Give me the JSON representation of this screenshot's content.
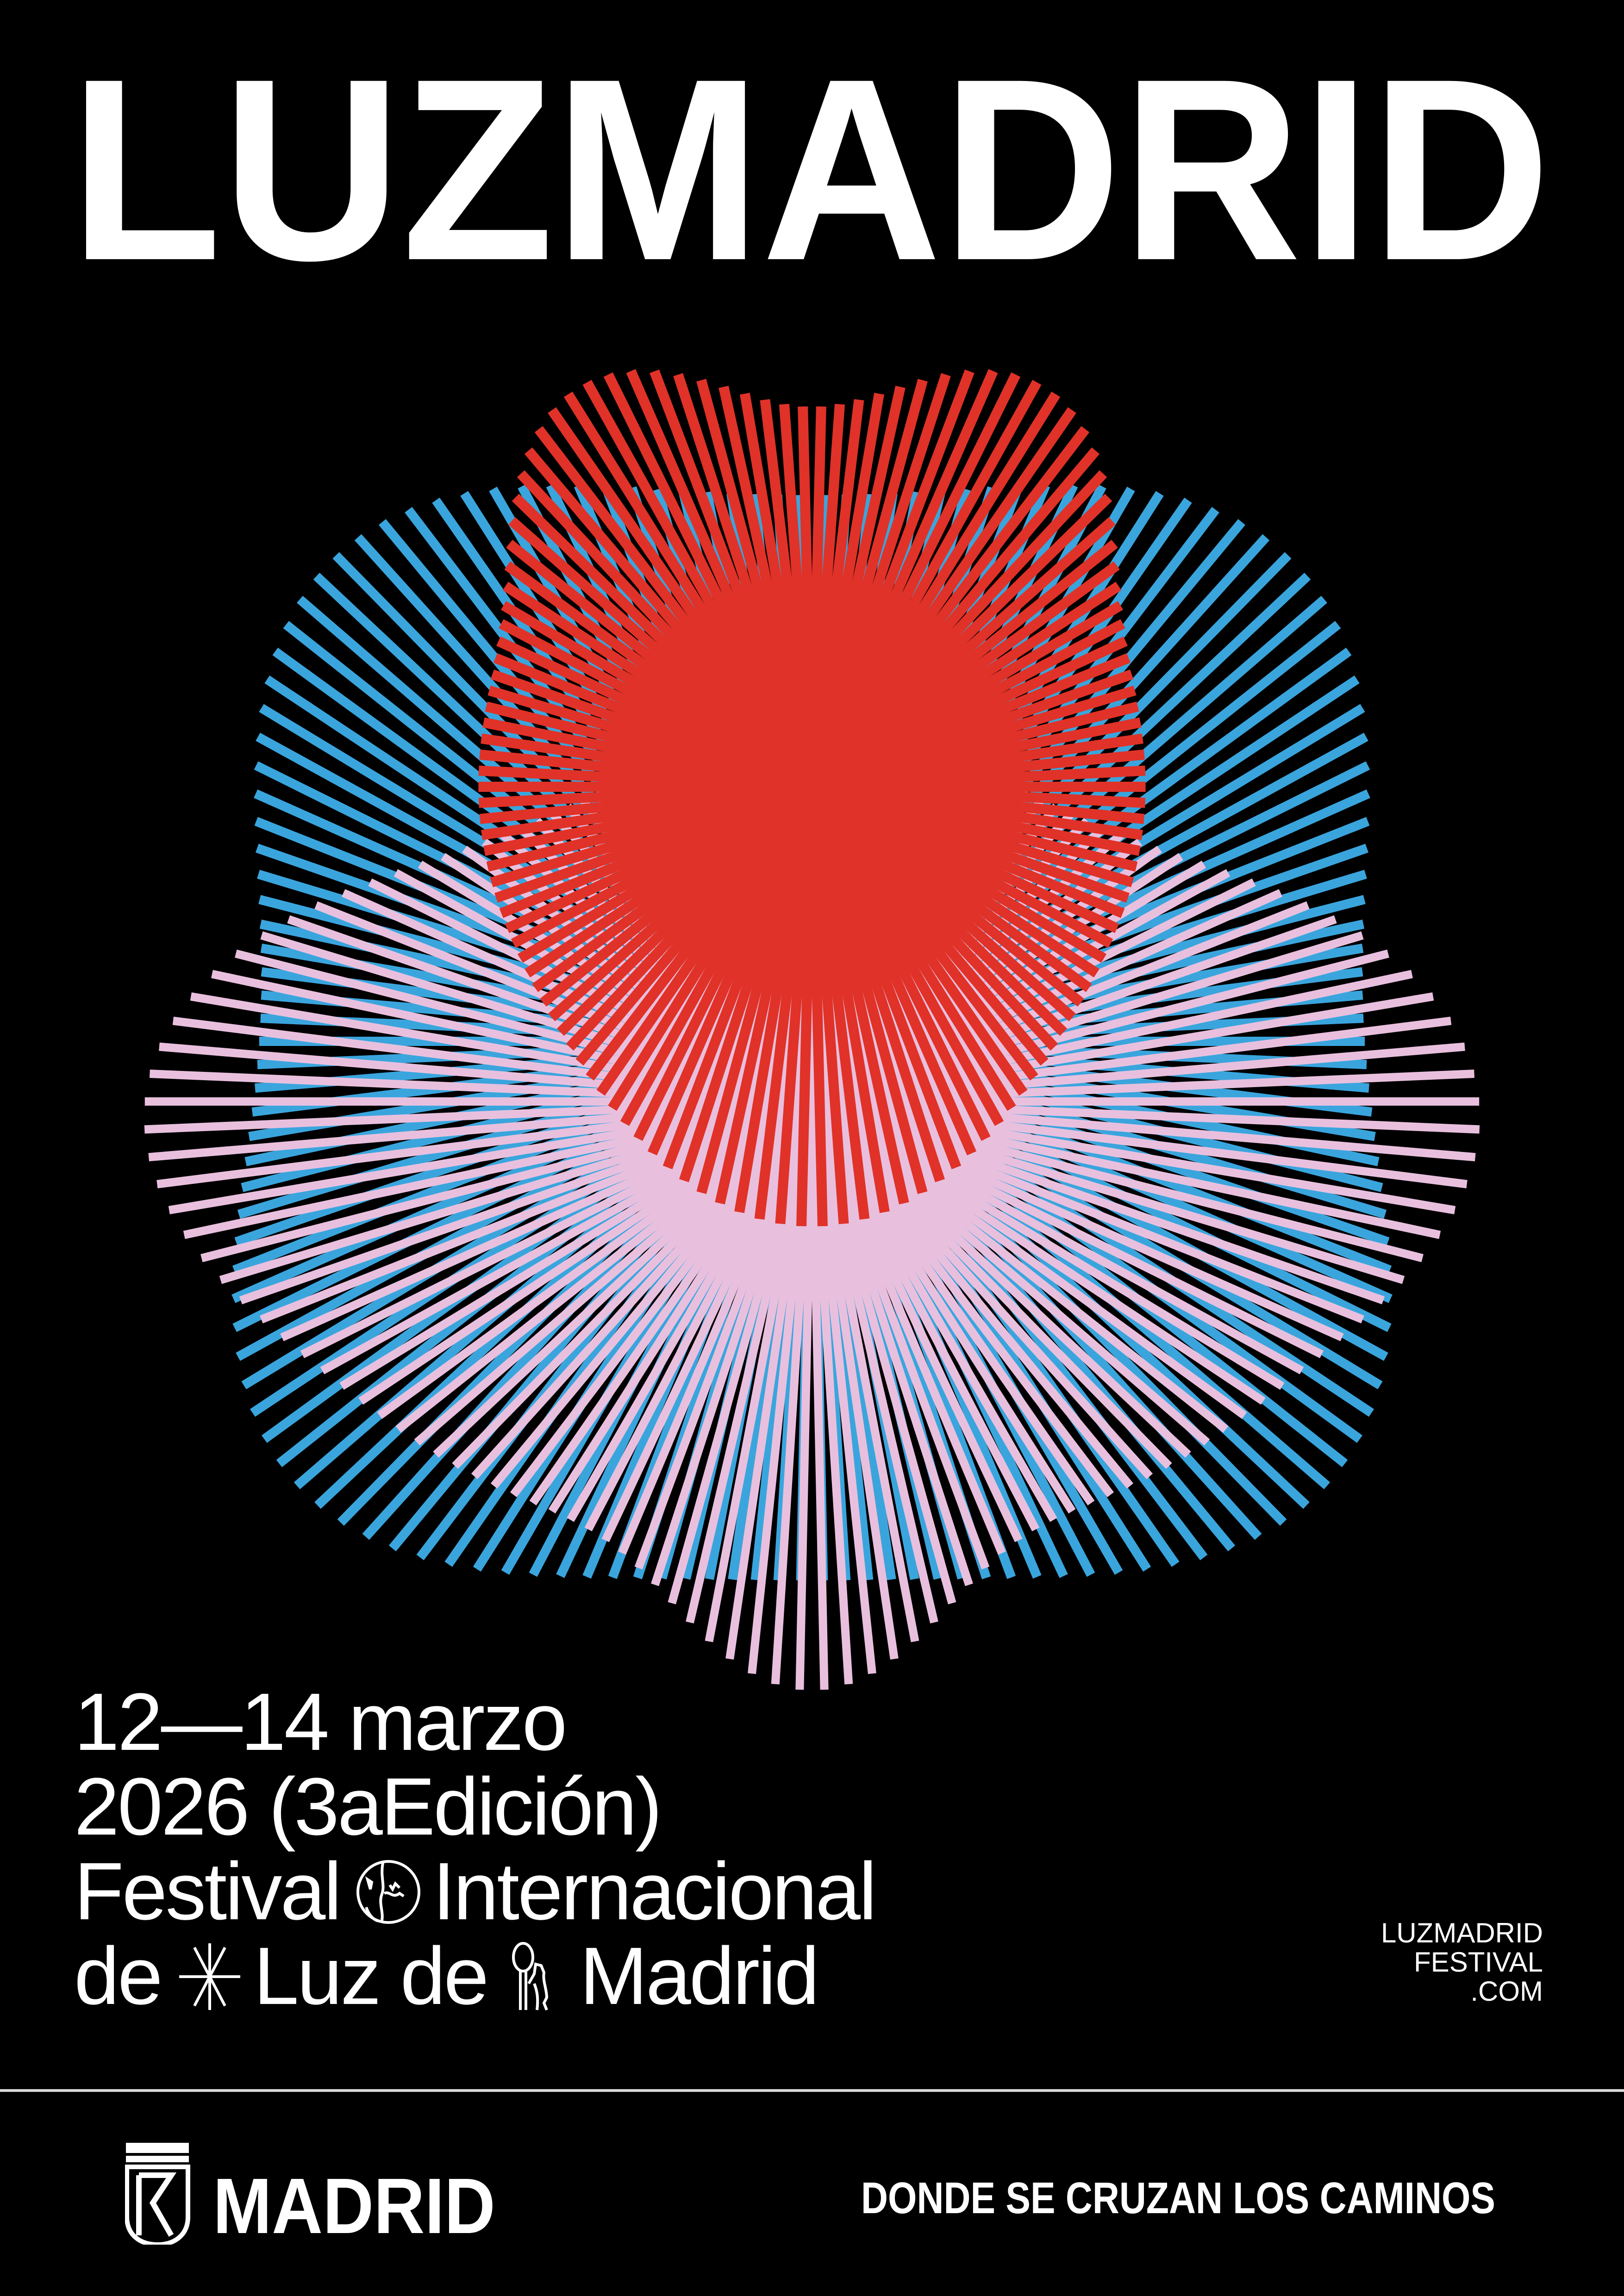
{
  "title": "LUZMADRID",
  "event": {
    "dates": "12—14 marzo",
    "year_edition": "2026 (3aEdición)",
    "line3_a": "Festival",
    "line3_icon": "globe-icon",
    "line3_b": "Internacional",
    "line4_a": "de",
    "line4_icon1": "asterisk-star-icon",
    "line4_b": "Luz de",
    "line4_icon2": "bear-tree-figure-icon",
    "line4_c": "Madrid"
  },
  "website": {
    "line1": "LUZMADRID",
    "line2": "FESTIVAL",
    "line3": ".COM"
  },
  "footer": {
    "logo_text": "MADRID",
    "logo_icon": "madrid-crest-icon",
    "tagline": "DONDE SE CRUZAN LOS CAMINOS"
  },
  "colors": {
    "background": "#000000",
    "text": "#ffffff",
    "red": "#e03228",
    "blue": "#3aa5dd",
    "pink": "#e8c0de"
  }
}
